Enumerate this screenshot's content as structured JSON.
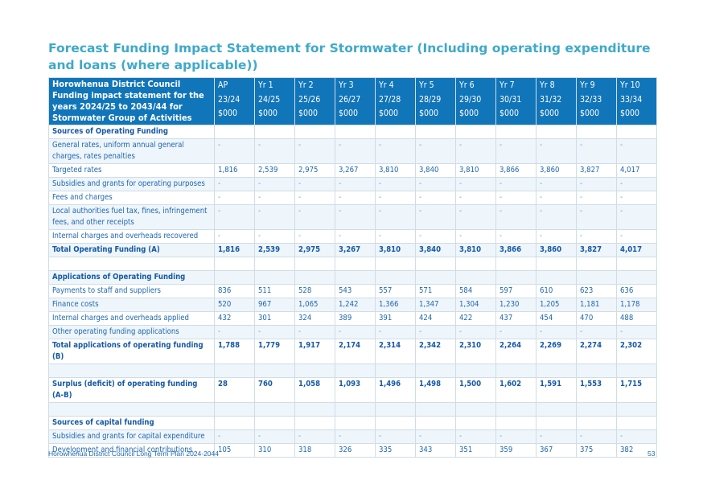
{
  "title": "Forecast Funding Impact Statement for Stormwater (Including operating expenditure and loans (where applicable))",
  "header": {
    "label_lines": [
      "Horowhenua District Council",
      "Funding impact statement for the",
      "years 2024/25 to 2043/44 for",
      "Stormwater Group of Activities"
    ],
    "columns": [
      {
        "year": "AP",
        "period": "23/24",
        "unit": "$000"
      },
      {
        "year": "Yr 1",
        "period": "24/25",
        "unit": "$000"
      },
      {
        "year": "Yr 2",
        "period": "25/26",
        "unit": "$000"
      },
      {
        "year": "Yr 3",
        "period": "26/27",
        "unit": "$000"
      },
      {
        "year": "Yr 4",
        "period": "27/28",
        "unit": "$000"
      },
      {
        "year": "Yr 5",
        "period": "28/29",
        "unit": "$000"
      },
      {
        "year": "Yr 6",
        "period": "29/30",
        "unit": "$000"
      },
      {
        "year": "Yr 7",
        "period": "30/31",
        "unit": "$000"
      },
      {
        "year": "Yr 8",
        "period": "31/32",
        "unit": "$000"
      },
      {
        "year": "Yr 9",
        "period": "32/33",
        "unit": "$000"
      },
      {
        "year": "Yr 10",
        "period": "33/34",
        "unit": "$000"
      }
    ]
  },
  "rows": [
    {
      "kind": "section",
      "label": "Sources of Operating Funding",
      "values": []
    },
    {
      "kind": "line",
      "label": "General rates, uniform annual general charges, rates penalties",
      "values": [
        "-",
        "-",
        "-",
        "-",
        "-",
        "-",
        "-",
        "-",
        "-",
        "-",
        "-"
      ]
    },
    {
      "kind": "line",
      "label": "Targeted rates",
      "values": [
        "1,816",
        "2,539",
        "2,975",
        "3,267",
        "3,810",
        "3,840",
        "3,810",
        "3,866",
        "3,860",
        "3,827",
        "4,017"
      ]
    },
    {
      "kind": "line",
      "label": "Subsidies and grants for operating purposes",
      "values": [
        "-",
        "-",
        "-",
        "-",
        "-",
        "-",
        "-",
        "-",
        "-",
        "-",
        "-"
      ]
    },
    {
      "kind": "line",
      "label": "Fees and charges",
      "values": [
        "-",
        "-",
        "-",
        "-",
        "-",
        "-",
        "-",
        "-",
        "-",
        "-",
        "-"
      ]
    },
    {
      "kind": "line",
      "label": "Local authorities fuel tax, fines, infringement fees, and other receipts",
      "values": [
        "-",
        "-",
        "-",
        "-",
        "-",
        "-",
        "-",
        "-",
        "-",
        "-",
        "-"
      ]
    },
    {
      "kind": "line",
      "label": "Internal charges and overheads recovered",
      "values": [
        "-",
        "-",
        "-",
        "-",
        "-",
        "-",
        "-",
        "-",
        "-",
        "-",
        "-"
      ]
    },
    {
      "kind": "total",
      "label": "Total Operating Funding (A)",
      "values": [
        "1,816",
        "2,539",
        "2,975",
        "3,267",
        "3,810",
        "3,840",
        "3,810",
        "3,866",
        "3,860",
        "3,827",
        "4,017"
      ]
    },
    {
      "kind": "spacer",
      "label": "",
      "values": []
    },
    {
      "kind": "section",
      "label": "Applications of Operating Funding",
      "values": []
    },
    {
      "kind": "line",
      "label": "Payments to staff and suppliers",
      "values": [
        "836",
        "511",
        "528",
        "543",
        "557",
        "571",
        "584",
        "597",
        "610",
        "623",
        "636"
      ]
    },
    {
      "kind": "line",
      "label": "Finance costs",
      "values": [
        "520",
        "967",
        "1,065",
        "1,242",
        "1,366",
        "1,347",
        "1,304",
        "1,230",
        "1,205",
        "1,181",
        "1,178"
      ]
    },
    {
      "kind": "line",
      "label": "Internal charges and overheads applied",
      "values": [
        "432",
        "301",
        "324",
        "389",
        "391",
        "424",
        "422",
        "437",
        "454",
        "470",
        "488"
      ]
    },
    {
      "kind": "line",
      "label": "Other operating funding applications",
      "values": [
        "-",
        "-",
        "-",
        "-",
        "-",
        "-",
        "-",
        "-",
        "-",
        "-",
        "-"
      ]
    },
    {
      "kind": "total",
      "label": "Total applications of operating funding (B)",
      "values": [
        "1,788",
        "1,779",
        "1,917",
        "2,174",
        "2,314",
        "2,342",
        "2,310",
        "2,264",
        "2,269",
        "2,274",
        "2,302"
      ]
    },
    {
      "kind": "spacer",
      "label": "",
      "values": []
    },
    {
      "kind": "total",
      "label": "Surplus (deficit) of operating funding (A-B)",
      "values": [
        "28",
        "760",
        "1,058",
        "1,093",
        "1,496",
        "1,498",
        "1,500",
        "1,602",
        "1,591",
        "1,553",
        "1,715"
      ]
    },
    {
      "kind": "spacer",
      "label": "",
      "values": []
    },
    {
      "kind": "section",
      "label": "Sources of capital funding",
      "values": []
    },
    {
      "kind": "line",
      "label": "Subsidies and grants for capital expenditure",
      "values": [
        "-",
        "-",
        "-",
        "-",
        "-",
        "-",
        "-",
        "-",
        "-",
        "-",
        "-"
      ]
    },
    {
      "kind": "line",
      "label": "Development and financial contributions",
      "values": [
        "105",
        "310",
        "318",
        "326",
        "335",
        "343",
        "351",
        "359",
        "367",
        "375",
        "382"
      ]
    }
  ],
  "footer": {
    "left": "Horowhenua District Council Long Term Plan 2024-2044",
    "page": "53"
  }
}
